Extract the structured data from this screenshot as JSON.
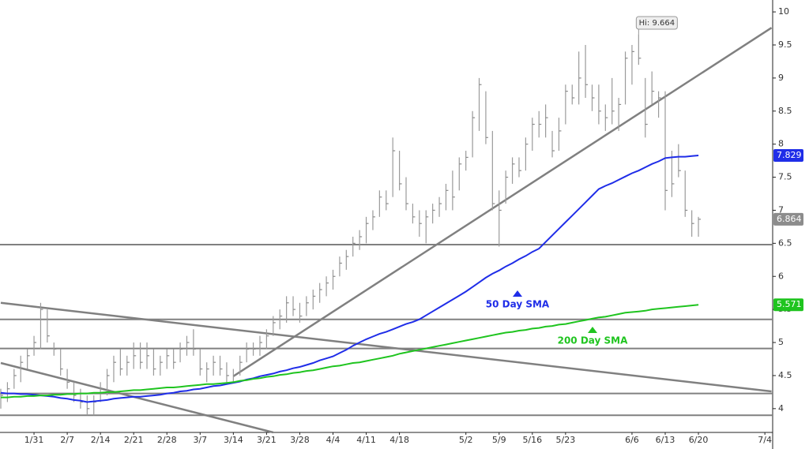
{
  "chart_data": {
    "type": "ohlc",
    "categories": [
      null,
      null,
      null,
      null,
      null,
      "1/31",
      null,
      null,
      null,
      null,
      "2/7",
      null,
      null,
      null,
      null,
      "2/14",
      null,
      null,
      null,
      null,
      "2/21",
      null,
      null,
      null,
      null,
      "2/28",
      null,
      null,
      null,
      null,
      "3/7",
      null,
      null,
      null,
      null,
      "3/14",
      null,
      null,
      null,
      null,
      "3/21",
      null,
      null,
      null,
      null,
      "3/28",
      null,
      null,
      null,
      null,
      "4/4",
      null,
      null,
      null,
      null,
      "4/11",
      null,
      null,
      null,
      null,
      "4/18",
      null,
      null,
      null,
      null,
      null,
      null,
      null,
      null,
      null,
      "5/2",
      null,
      null,
      null,
      null,
      "5/9",
      null,
      null,
      null,
      null,
      "5/16",
      null,
      null,
      null,
      null,
      "5/23",
      null,
      null,
      null,
      null,
      null,
      null,
      null,
      null,
      null,
      "6/6",
      null,
      null,
      null,
      null,
      "6/13",
      null,
      null,
      null,
      null,
      "6/20",
      null,
      null,
      null,
      null,
      null,
      null,
      null,
      null,
      null,
      "7/4",
      null
    ],
    "high": [
      4.3,
      4.4,
      4.6,
      4.8,
      4.9,
      5.1,
      5.6,
      5.5,
      5.0,
      4.9,
      4.6,
      4.4,
      4.3,
      4.2,
      4.2,
      4.4,
      4.6,
      4.8,
      4.9,
      4.8,
      5.0,
      5.0,
      5.0,
      4.9,
      4.8,
      4.9,
      4.9,
      5.0,
      5.1,
      5.2,
      4.9,
      4.7,
      4.8,
      4.8,
      4.7,
      4.6,
      4.8,
      5.0,
      5.0,
      5.1,
      5.2,
      5.4,
      5.5,
      5.7,
      5.7,
      5.6,
      5.7,
      5.8,
      5.9,
      6.0,
      6.1,
      6.3,
      6.4,
      6.6,
      6.7,
      6.9,
      7.0,
      7.3,
      7.3,
      8.1,
      7.9,
      7.5,
      7.1,
      7.0,
      7.0,
      7.1,
      7.2,
      7.4,
      7.6,
      7.8,
      7.9,
      8.5,
      9.0,
      8.8,
      8.2,
      7.3,
      7.6,
      7.8,
      7.8,
      8.1,
      8.4,
      8.5,
      8.6,
      8.2,
      8.4,
      8.9,
      8.9,
      9.4,
      9.5,
      8.9,
      8.9,
      8.6,
      9.0,
      8.7,
      9.4,
      9.5,
      9.664,
      9.0,
      9.1,
      8.8,
      8.8,
      7.9,
      8.0,
      7.6,
      7.0,
      6.9,
      null,
      null,
      null,
      null,
      null,
      null,
      null,
      null,
      null,
      null,
      null
    ],
    "low": [
      4.0,
      4.1,
      4.3,
      4.4,
      4.6,
      4.8,
      4.9,
      5.0,
      4.8,
      4.5,
      4.3,
      4.1,
      4.0,
      3.9,
      3.9,
      4.1,
      4.2,
      4.4,
      4.5,
      4.5,
      4.6,
      4.6,
      4.6,
      4.5,
      4.5,
      4.6,
      4.6,
      4.7,
      4.8,
      4.8,
      4.5,
      4.4,
      4.5,
      4.5,
      4.4,
      4.4,
      4.5,
      4.7,
      4.8,
      4.8,
      4.9,
      5.1,
      5.2,
      5.3,
      5.4,
      5.3,
      5.4,
      5.5,
      5.6,
      5.7,
      5.8,
      6.0,
      6.1,
      6.3,
      6.4,
      6.5,
      6.7,
      6.9,
      7.0,
      7.2,
      7.3,
      7.0,
      6.8,
      6.6,
      6.5,
      6.8,
      6.9,
      7.0,
      7.0,
      7.3,
      7.6,
      7.8,
      8.2,
      8.0,
      7.0,
      6.45,
      7.1,
      7.4,
      7.5,
      7.6,
      7.9,
      8.1,
      8.1,
      7.8,
      7.9,
      8.3,
      8.6,
      8.6,
      8.7,
      8.5,
      8.3,
      8.2,
      8.3,
      8.2,
      8.6,
      8.9,
      9.2,
      8.1,
      8.6,
      8.4,
      7.0,
      7.2,
      7.5,
      6.9,
      6.6,
      6.6,
      null,
      null,
      null,
      null,
      null,
      null,
      null,
      null,
      null,
      null,
      null
    ],
    "close": [
      4.2,
      4.3,
      4.5,
      4.7,
      4.8,
      5.0,
      5.5,
      5.1,
      4.9,
      4.6,
      4.4,
      4.2,
      4.1,
      4.0,
      4.1,
      4.3,
      4.5,
      4.7,
      4.6,
      4.7,
      4.8,
      4.7,
      4.8,
      4.6,
      4.7,
      4.8,
      4.7,
      4.9,
      5.0,
      4.9,
      4.6,
      4.6,
      4.7,
      4.6,
      4.5,
      4.5,
      4.7,
      4.9,
      4.9,
      5.0,
      5.1,
      5.3,
      5.4,
      5.6,
      5.5,
      5.4,
      5.6,
      5.7,
      5.8,
      5.9,
      6.0,
      6.2,
      6.3,
      6.5,
      6.6,
      6.8,
      6.9,
      7.2,
      7.1,
      7.9,
      7.4,
      7.1,
      6.9,
      6.8,
      6.9,
      7.0,
      7.1,
      7.3,
      7.2,
      7.7,
      7.8,
      8.4,
      8.9,
      8.1,
      7.1,
      7.0,
      7.5,
      7.7,
      7.6,
      8.0,
      8.3,
      8.3,
      8.4,
      7.9,
      8.2,
      8.8,
      8.7,
      9.0,
      8.9,
      8.7,
      8.5,
      8.4,
      8.5,
      8.6,
      9.3,
      9.4,
      9.3,
      8.3,
      8.8,
      8.7,
      7.3,
      7.4,
      7.6,
      7.0,
      6.8,
      6.864,
      null,
      null,
      null,
      null,
      null,
      null,
      null,
      null,
      null,
      null,
      null
    ],
    "bar_color": "#9a9a9a",
    "close_color": "#8a8a8a",
    "series": [
      {
        "name": "50 Day SMA",
        "color": "#1f2de8",
        "values": [
          4.24,
          4.23,
          4.23,
          4.22,
          4.22,
          4.21,
          4.2,
          4.19,
          4.18,
          4.16,
          4.15,
          4.13,
          4.12,
          4.1,
          4.11,
          4.12,
          4.13,
          4.15,
          4.16,
          4.17,
          4.18,
          4.18,
          4.19,
          4.2,
          4.21,
          4.23,
          4.24,
          4.26,
          4.27,
          4.29,
          4.3,
          4.32,
          4.34,
          4.35,
          4.37,
          4.39,
          4.41,
          4.44,
          4.46,
          4.49,
          4.51,
          4.53,
          4.56,
          4.58,
          4.61,
          4.63,
          4.66,
          4.69,
          4.73,
          4.76,
          4.79,
          4.84,
          4.89,
          4.95,
          5.0,
          5.05,
          5.09,
          5.13,
          5.16,
          5.2,
          5.24,
          5.28,
          5.31,
          5.35,
          5.41,
          5.47,
          5.53,
          5.59,
          5.65,
          5.71,
          5.77,
          5.84,
          5.91,
          5.98,
          6.04,
          6.09,
          6.15,
          6.2,
          6.26,
          6.31,
          6.37,
          6.42,
          6.52,
          6.62,
          6.72,
          6.82,
          6.92,
          7.02,
          7.12,
          7.22,
          7.32,
          7.37,
          7.41,
          7.46,
          7.51,
          7.56,
          7.6,
          7.65,
          7.7,
          7.74,
          7.79,
          7.8,
          7.81,
          7.81,
          7.82,
          7.829,
          null,
          null,
          null,
          null,
          null,
          null,
          null,
          null,
          null,
          null,
          null
        ]
      },
      {
        "name": "200 Day SMA",
        "color": "#1fc41f",
        "values": [
          4.17,
          4.17,
          4.18,
          4.18,
          4.19,
          4.19,
          4.2,
          4.2,
          4.21,
          4.21,
          4.22,
          4.22,
          4.23,
          4.23,
          4.24,
          4.24,
          4.25,
          4.25,
          4.26,
          4.27,
          4.28,
          4.28,
          4.29,
          4.3,
          4.31,
          4.32,
          4.32,
          4.33,
          4.34,
          4.35,
          4.36,
          4.37,
          4.37,
          4.38,
          4.39,
          4.4,
          4.42,
          4.43,
          4.45,
          4.46,
          4.48,
          4.49,
          4.51,
          4.52,
          4.54,
          4.55,
          4.57,
          4.58,
          4.6,
          4.62,
          4.64,
          4.65,
          4.67,
          4.69,
          4.7,
          4.72,
          4.74,
          4.76,
          4.78,
          4.8,
          4.83,
          4.85,
          4.87,
          4.89,
          4.91,
          4.93,
          4.95,
          4.97,
          4.99,
          5.01,
          5.03,
          5.05,
          5.07,
          5.09,
          5.11,
          5.13,
          5.15,
          5.16,
          5.18,
          5.19,
          5.21,
          5.22,
          5.24,
          5.25,
          5.27,
          5.28,
          5.3,
          5.32,
          5.34,
          5.36,
          5.38,
          5.39,
          5.41,
          5.43,
          5.45,
          5.46,
          5.47,
          5.48,
          5.5,
          5.51,
          5.52,
          5.53,
          5.54,
          5.55,
          5.56,
          5.571,
          null,
          null,
          null,
          null,
          null,
          null,
          null,
          null,
          null,
          null,
          null
        ]
      }
    ],
    "levels": [
      6.48,
      5.35,
      4.91,
      4.23,
      3.9
    ],
    "trendlines": [
      {
        "x": [
          35,
          116
        ],
        "y": [
          4.49,
          9.76
        ]
      },
      {
        "x": [
          0,
          116
        ],
        "y": [
          5.6,
          4.26
        ]
      },
      {
        "x": [
          0,
          41
        ],
        "y": [
          4.69,
          3.64
        ]
      }
    ],
    "line_color": "#808080",
    "high_label": "Hi: 9.664",
    "ylim": [
      3.64,
      10.18
    ],
    "yticks": [
      4,
      4.5,
      5,
      5.5,
      6,
      6.5,
      7,
      7.5,
      8,
      8.5,
      9,
      9.5,
      10
    ]
  }
}
